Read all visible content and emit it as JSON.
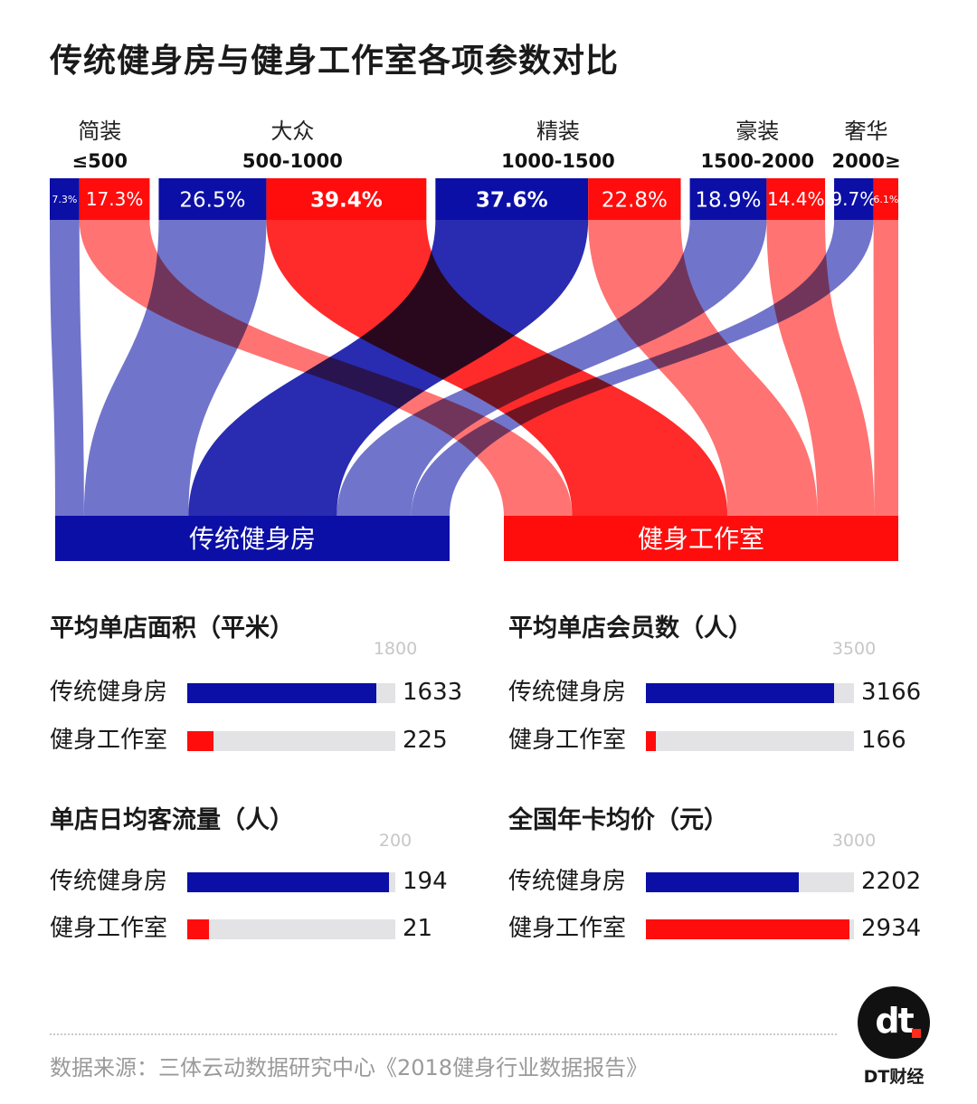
{
  "title": "传统健身房与健身工作室各项参数对比",
  "colors": {
    "traditional": "#0b0fa6",
    "studio": "#ff0d0d",
    "track": "#e3e3e6"
  },
  "chart_data": [
    {
      "type": "sankey",
      "categories": [
        {
          "name": "简装",
          "range": "≤500"
        },
        {
          "name": "大众",
          "range": "500-1000"
        },
        {
          "name": "精装",
          "range": "1000-1500"
        },
        {
          "name": "豪装",
          "range": "1500-2000"
        },
        {
          "name": "奢华",
          "range": "2000≥"
        }
      ],
      "series": [
        {
          "name": "传统健身房",
          "values": [
            7.3,
            26.5,
            37.6,
            18.9,
            9.7
          ],
          "labels": [
            "7.3%",
            "26.5%",
            "37.6%",
            "18.9%",
            "9.7%"
          ]
        },
        {
          "name": "健身工作室",
          "values": [
            17.3,
            39.4,
            22.8,
            14.4,
            6.1
          ],
          "labels": [
            "17.3%",
            "39.4%",
            "22.8%",
            "14.4%",
            "6.1%"
          ]
        }
      ]
    },
    {
      "type": "bar",
      "title": "平均单店面积（平米）",
      "max_label": "1800",
      "max": 1800,
      "categories": [
        "传统健身房",
        "健身工作室"
      ],
      "values": [
        1633,
        225
      ],
      "value_labels": [
        "1633",
        "225"
      ]
    },
    {
      "type": "bar",
      "title": "平均单店会员数（人）",
      "max_label": "3500",
      "max": 3500,
      "categories": [
        "传统健身房",
        "健身工作室"
      ],
      "values": [
        3166,
        166
      ],
      "value_labels": [
        "3166",
        "166"
      ]
    },
    {
      "type": "bar",
      "title": "单店日均客流量（人）",
      "max_label": "200",
      "max": 200,
      "categories": [
        "传统健身房",
        "健身工作室"
      ],
      "values": [
        194,
        21
      ],
      "value_labels": [
        "194",
        "21"
      ]
    },
    {
      "type": "bar",
      "title": "全国年卡均价（元）",
      "max_label": "3000",
      "max": 3000,
      "categories": [
        "传统健身房",
        "健身工作室"
      ],
      "values": [
        2202,
        2934
      ],
      "value_labels": [
        "2202",
        "2934"
      ]
    }
  ],
  "source": "数据来源：三体云动数据研究中心《2018健身行业数据报告》",
  "brand": {
    "logo_text": "dt",
    "name": "DT财经"
  }
}
